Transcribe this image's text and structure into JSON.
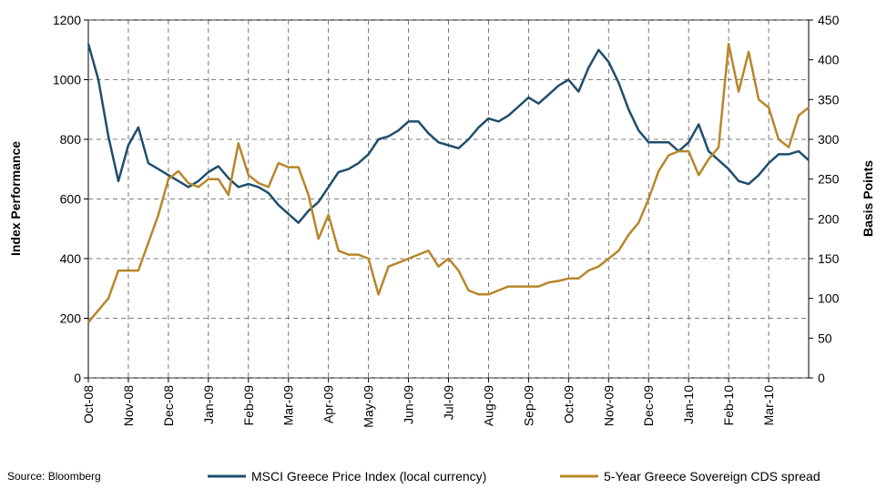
{
  "chart_data": {
    "type": "line",
    "y_label": "Index Performance",
    "y2_label": "Basis Points",
    "source": "Source: Bloomberg",
    "categories": [
      "Oct-08",
      null,
      null,
      null,
      "Nov-08",
      null,
      null,
      null,
      "Dec-08",
      null,
      null,
      null,
      "Jan-09",
      null,
      null,
      null,
      "Feb-09",
      null,
      null,
      null,
      "Mar-09",
      null,
      null,
      null,
      "Apr-09",
      null,
      null,
      null,
      "May-09",
      null,
      null,
      null,
      "Jun-09",
      null,
      null,
      null,
      "Jul-09",
      null,
      null,
      null,
      "Aug-09",
      null,
      null,
      null,
      "Sep-09",
      null,
      null,
      null,
      "Oct-09",
      null,
      null,
      null,
      "Nov-09",
      null,
      null,
      null,
      "Dec-09",
      null,
      null,
      null,
      "Jan-10",
      null,
      null,
      null,
      "Feb-10",
      null,
      null,
      null,
      "Mar-10",
      null,
      null,
      null,
      null
    ],
    "series": [
      {
        "name": "MSCI Greece Price Index (local currency)",
        "color": "#1f4e6e",
        "values": [
          1120,
          1000,
          810,
          660,
          780,
          840,
          720,
          700,
          680,
          660,
          640,
          660,
          690,
          710,
          670,
          640,
          650,
          640,
          620,
          580,
          550,
          520,
          560,
          590,
          640,
          690,
          700,
          720,
          750,
          800,
          810,
          830,
          860,
          860,
          820,
          790,
          780,
          770,
          800,
          840,
          870,
          860,
          880,
          910,
          940,
          920,
          950,
          980,
          1000,
          960,
          1040,
          1100,
          1060,
          990,
          900,
          830,
          790,
          790,
          790,
          760,
          790,
          850,
          760,
          730,
          700,
          660,
          650,
          680,
          720,
          750,
          750,
          760,
          730
        ]
      },
      {
        "name": "5-Year Greece Sovereign CDS spread",
        "color": "#b8862a",
        "axis": "y2",
        "values": [
          70,
          85,
          100,
          135,
          135,
          135,
          170,
          205,
          250,
          260,
          245,
          240,
          250,
          250,
          230,
          295,
          255,
          245,
          240,
          270,
          265,
          265,
          230,
          175,
          205,
          160,
          155,
          155,
          150,
          105,
          140,
          145,
          150,
          155,
          160,
          140,
          150,
          135,
          110,
          105,
          105,
          110,
          115,
          115,
          115,
          115,
          120,
          122,
          125,
          125,
          135,
          140,
          150,
          160,
          180,
          195,
          225,
          260,
          280,
          285,
          285,
          255,
          275,
          290,
          420,
          360,
          410,
          350,
          340,
          300,
          290,
          330,
          340
        ]
      }
    ],
    "ylim": [
      0,
      1200
    ],
    "yticks": [
      0,
      200,
      400,
      600,
      800,
      1000,
      1200
    ],
    "y2lim": [
      0,
      450
    ],
    "y2ticks": [
      0,
      50,
      100,
      150,
      200,
      250,
      300,
      350,
      400,
      450
    ],
    "grid": true,
    "legend": "bottom"
  }
}
